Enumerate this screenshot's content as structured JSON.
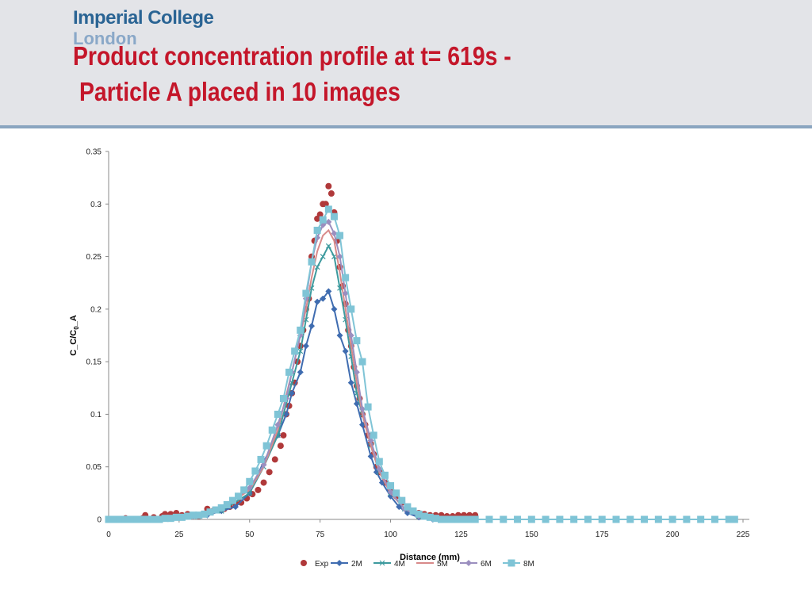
{
  "header": {
    "logo_line1": "Imperial College",
    "logo_line2": "London",
    "title_line1": "Product concentration profile at t= 619s -",
    "title_line2": "Particle A placed in 10 images"
  },
  "colors": {
    "exp": "#b0393a",
    "2M": "#3f6cb0",
    "4M": "#3d9a9e",
    "5M": "#d88a8a",
    "6M": "#9b8fbf",
    "8M": "#7fc4d6"
  },
  "chart_data": {
    "type": "line",
    "xlabel": "Distance (mm)",
    "ylabel_main": "C_C/C",
    "ylabel_sub": "0",
    "ylabel_tail": "_A",
    "xlim": [
      0,
      225
    ],
    "ylim": [
      0,
      0.35
    ],
    "xticks": [
      0,
      25,
      50,
      75,
      100,
      125,
      150,
      175,
      200,
      225
    ],
    "yticks": [
      0,
      0.05,
      0.1,
      0.15,
      0.2,
      0.25,
      0.3,
      0.35
    ],
    "ytick_labels": [
      "0",
      "0.05",
      "0.1",
      "0.15",
      "0.2",
      "0.25",
      "0.3",
      "0.35"
    ],
    "legend": [
      "Exp",
      "2M",
      "4M",
      "5M",
      "6M",
      "8M"
    ],
    "legend_position": "bottom",
    "series": [
      {
        "name": "Exp",
        "style": "markers",
        "points": [
          [
            0,
            0
          ],
          [
            3,
            0
          ],
          [
            6,
            0.001
          ],
          [
            9,
            0
          ],
          [
            12,
            0.001
          ],
          [
            13,
            0.004
          ],
          [
            16,
            0.002
          ],
          [
            19,
            0.003
          ],
          [
            20,
            0.005
          ],
          [
            22,
            0.005
          ],
          [
            24,
            0.006
          ],
          [
            26,
            0.004
          ],
          [
            28,
            0.005
          ],
          [
            30,
            0.004
          ],
          [
            32,
            0.003
          ],
          [
            34,
            0.005
          ],
          [
            35,
            0.01
          ],
          [
            37,
            0.008
          ],
          [
            39,
            0.009
          ],
          [
            41,
            0.01
          ],
          [
            43,
            0.012
          ],
          [
            45,
            0.015
          ],
          [
            47,
            0.016
          ],
          [
            49,
            0.02
          ],
          [
            51,
            0.024
          ],
          [
            53,
            0.028
          ],
          [
            55,
            0.035
          ],
          [
            57,
            0.045
          ],
          [
            59,
            0.057
          ],
          [
            61,
            0.07
          ],
          [
            62,
            0.08
          ],
          [
            63,
            0.1
          ],
          [
            64,
            0.108
          ],
          [
            65,
            0.12
          ],
          [
            66,
            0.13
          ],
          [
            67,
            0.15
          ],
          [
            68,
            0.165
          ],
          [
            69,
            0.18
          ],
          [
            70,
            0.2
          ],
          [
            71,
            0.21
          ],
          [
            72,
            0.25
          ],
          [
            73,
            0.265
          ],
          [
            74,
            0.286
          ],
          [
            75,
            0.29
          ],
          [
            76,
            0.3
          ],
          [
            77,
            0.3
          ],
          [
            78,
            0.317
          ],
          [
            79,
            0.31
          ],
          [
            80,
            0.292
          ],
          [
            81,
            0.265
          ],
          [
            82,
            0.24
          ],
          [
            83,
            0.222
          ],
          [
            84,
            0.205
          ],
          [
            85,
            0.18
          ],
          [
            86,
            0.165
          ],
          [
            87,
            0.145
          ],
          [
            88,
            0.127
          ],
          [
            89,
            0.115
          ],
          [
            90,
            0.1
          ],
          [
            91,
            0.09
          ],
          [
            92,
            0.08
          ],
          [
            93,
            0.072
          ],
          [
            94,
            0.062
          ],
          [
            95,
            0.05
          ],
          [
            96,
            0.045
          ],
          [
            98,
            0.035
          ],
          [
            100,
            0.028
          ],
          [
            102,
            0.022
          ],
          [
            104,
            0.016
          ],
          [
            106,
            0.011
          ],
          [
            108,
            0.008
          ],
          [
            110,
            0.006
          ],
          [
            112,
            0.005
          ],
          [
            114,
            0.004
          ],
          [
            116,
            0.004
          ],
          [
            118,
            0.004
          ],
          [
            120,
            0.003
          ],
          [
            122,
            0.003
          ],
          [
            124,
            0.004
          ],
          [
            126,
            0.004
          ],
          [
            128,
            0.004
          ],
          [
            130,
            0.004
          ]
        ]
      },
      {
        "name": "2M",
        "style": "line-diamond",
        "points": [
          [
            0,
            0
          ],
          [
            5,
            0
          ],
          [
            10,
            0
          ],
          [
            15,
            0
          ],
          [
            20,
            0.001
          ],
          [
            25,
            0.002
          ],
          [
            30,
            0.003
          ],
          [
            35,
            0.004
          ],
          [
            40,
            0.008
          ],
          [
            45,
            0.012
          ],
          [
            50,
            0.025
          ],
          [
            55,
            0.055
          ],
          [
            60,
            0.08
          ],
          [
            63,
            0.1
          ],
          [
            65,
            0.12
          ],
          [
            68,
            0.14
          ],
          [
            70,
            0.165
          ],
          [
            72,
            0.184
          ],
          [
            74,
            0.207
          ],
          [
            76,
            0.21
          ],
          [
            78,
            0.217
          ],
          [
            80,
            0.2
          ],
          [
            82,
            0.175
          ],
          [
            84,
            0.16
          ],
          [
            86,
            0.13
          ],
          [
            88,
            0.11
          ],
          [
            90,
            0.09
          ],
          [
            93,
            0.06
          ],
          [
            95,
            0.045
          ],
          [
            97,
            0.035
          ],
          [
            100,
            0.022
          ],
          [
            103,
            0.012
          ],
          [
            106,
            0.006
          ],
          [
            110,
            0.002
          ],
          [
            115,
            0
          ],
          [
            120,
            0
          ],
          [
            125,
            0
          ],
          [
            130,
            0
          ],
          [
            140,
            0
          ],
          [
            150,
            0
          ],
          [
            160,
            0
          ],
          [
            170,
            0
          ],
          [
            180,
            0
          ],
          [
            190,
            0
          ],
          [
            200,
            0
          ],
          [
            210,
            0
          ],
          [
            222,
            0
          ]
        ]
      },
      {
        "name": "4M",
        "style": "line-x",
        "points": [
          [
            0,
            0
          ],
          [
            10,
            0
          ],
          [
            20,
            0.001
          ],
          [
            30,
            0.003
          ],
          [
            40,
            0.008
          ],
          [
            50,
            0.025
          ],
          [
            55,
            0.05
          ],
          [
            60,
            0.08
          ],
          [
            65,
            0.13
          ],
          [
            68,
            0.16
          ],
          [
            70,
            0.19
          ],
          [
            72,
            0.22
          ],
          [
            74,
            0.24
          ],
          [
            76,
            0.25
          ],
          [
            78,
            0.26
          ],
          [
            80,
            0.25
          ],
          [
            82,
            0.22
          ],
          [
            84,
            0.19
          ],
          [
            86,
            0.155
          ],
          [
            88,
            0.12
          ],
          [
            90,
            0.1
          ],
          [
            93,
            0.07
          ],
          [
            96,
            0.045
          ],
          [
            100,
            0.025
          ],
          [
            105,
            0.01
          ],
          [
            110,
            0.003
          ],
          [
            120,
            0
          ],
          [
            140,
            0
          ],
          [
            160,
            0
          ],
          [
            180,
            0
          ],
          [
            200,
            0
          ],
          [
            222,
            0
          ]
        ]
      },
      {
        "name": "5M",
        "style": "line",
        "points": [
          [
            0,
            0
          ],
          [
            10,
            0
          ],
          [
            20,
            0.001
          ],
          [
            30,
            0.003
          ],
          [
            40,
            0.01
          ],
          [
            50,
            0.028
          ],
          [
            55,
            0.05
          ],
          [
            60,
            0.085
          ],
          [
            65,
            0.14
          ],
          [
            68,
            0.175
          ],
          [
            70,
            0.2
          ],
          [
            72,
            0.23
          ],
          [
            74,
            0.255
          ],
          [
            76,
            0.27
          ],
          [
            78,
            0.275
          ],
          [
            80,
            0.265
          ],
          [
            82,
            0.235
          ],
          [
            84,
            0.2
          ],
          [
            86,
            0.165
          ],
          [
            88,
            0.13
          ],
          [
            90,
            0.1
          ],
          [
            93,
            0.07
          ],
          [
            96,
            0.045
          ],
          [
            100,
            0.025
          ],
          [
            105,
            0.01
          ],
          [
            110,
            0.003
          ],
          [
            120,
            0
          ],
          [
            140,
            0
          ],
          [
            160,
            0
          ],
          [
            180,
            0
          ],
          [
            200,
            0
          ],
          [
            222,
            0
          ]
        ]
      },
      {
        "name": "6M",
        "style": "line-diamond",
        "points": [
          [
            0,
            0
          ],
          [
            10,
            0
          ],
          [
            20,
            0.001
          ],
          [
            30,
            0.003
          ],
          [
            40,
            0.01
          ],
          [
            50,
            0.03
          ],
          [
            55,
            0.052
          ],
          [
            60,
            0.09
          ],
          [
            63,
            0.115
          ],
          [
            65,
            0.14
          ],
          [
            68,
            0.175
          ],
          [
            70,
            0.21
          ],
          [
            72,
            0.245
          ],
          [
            74,
            0.268
          ],
          [
            76,
            0.28
          ],
          [
            78,
            0.283
          ],
          [
            80,
            0.272
          ],
          [
            82,
            0.25
          ],
          [
            84,
            0.215
          ],
          [
            86,
            0.175
          ],
          [
            88,
            0.14
          ],
          [
            90,
            0.105
          ],
          [
            93,
            0.075
          ],
          [
            96,
            0.048
          ],
          [
            100,
            0.026
          ],
          [
            105,
            0.01
          ],
          [
            110,
            0.003
          ],
          [
            120,
            0
          ],
          [
            140,
            0
          ],
          [
            160,
            0
          ],
          [
            180,
            0
          ],
          [
            200,
            0
          ],
          [
            222,
            0
          ]
        ]
      },
      {
        "name": "8M",
        "style": "line-square",
        "points": [
          [
            0,
            0
          ],
          [
            2,
            0
          ],
          [
            4,
            0
          ],
          [
            6,
            0
          ],
          [
            8,
            0
          ],
          [
            10,
            0
          ],
          [
            12,
            0
          ],
          [
            14,
            0
          ],
          [
            16,
            0
          ],
          [
            18,
            0
          ],
          [
            20,
            0.001
          ],
          [
            22,
            0.001
          ],
          [
            24,
            0.002
          ],
          [
            26,
            0.002
          ],
          [
            28,
            0.003
          ],
          [
            30,
            0.004
          ],
          [
            32,
            0.004
          ],
          [
            34,
            0.005
          ],
          [
            36,
            0.007
          ],
          [
            38,
            0.009
          ],
          [
            40,
            0.011
          ],
          [
            42,
            0.014
          ],
          [
            44,
            0.018
          ],
          [
            46,
            0.022
          ],
          [
            48,
            0.028
          ],
          [
            50,
            0.036
          ],
          [
            52,
            0.046
          ],
          [
            54,
            0.057
          ],
          [
            56,
            0.07
          ],
          [
            58,
            0.085
          ],
          [
            60,
            0.1
          ],
          [
            62,
            0.115
          ],
          [
            64,
            0.14
          ],
          [
            66,
            0.16
          ],
          [
            68,
            0.18
          ],
          [
            70,
            0.215
          ],
          [
            72,
            0.245
          ],
          [
            74,
            0.275
          ],
          [
            76,
            0.285
          ],
          [
            78,
            0.295
          ],
          [
            80,
            0.288
          ],
          [
            82,
            0.27
          ],
          [
            84,
            0.23
          ],
          [
            86,
            0.2
          ],
          [
            88,
            0.17
          ],
          [
            90,
            0.15
          ],
          [
            92,
            0.107
          ],
          [
            94,
            0.08
          ],
          [
            96,
            0.055
          ],
          [
            98,
            0.042
          ],
          [
            100,
            0.032
          ],
          [
            102,
            0.025
          ],
          [
            104,
            0.018
          ],
          [
            106,
            0.012
          ],
          [
            108,
            0.008
          ],
          [
            110,
            0.005
          ],
          [
            112,
            0.003
          ],
          [
            114,
            0.002
          ],
          [
            116,
            0.001
          ],
          [
            118,
            0
          ],
          [
            120,
            0
          ],
          [
            122,
            0
          ],
          [
            124,
            0
          ],
          [
            126,
            0
          ],
          [
            128,
            0
          ],
          [
            130,
            0
          ],
          [
            135,
            0
          ],
          [
            140,
            0
          ],
          [
            145,
            0
          ],
          [
            150,
            0
          ],
          [
            155,
            0
          ],
          [
            160,
            0
          ],
          [
            165,
            0
          ],
          [
            170,
            0
          ],
          [
            175,
            0
          ],
          [
            180,
            0
          ],
          [
            185,
            0
          ],
          [
            190,
            0
          ],
          [
            195,
            0
          ],
          [
            200,
            0
          ],
          [
            205,
            0
          ],
          [
            210,
            0
          ],
          [
            215,
            0
          ],
          [
            220,
            0
          ],
          [
            222,
            0
          ]
        ]
      }
    ]
  }
}
